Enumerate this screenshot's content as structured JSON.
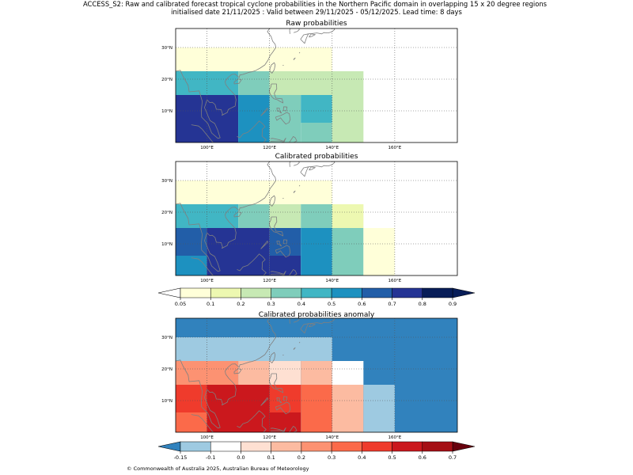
{
  "header": {
    "title_line1": "ACCESS_S2: Raw and calibrated forecast tropical cyclone probabilities in the Northern Pacific domain in overlapping 15 x 20 degree regions",
    "title_line2": "initialised date 21/11/2025 :  Valid between 29/11/2025 - 05/12/2025. Lead time: 8 days"
  },
  "footer": {
    "copyright": "© Commonwealth of Australia 2025, Australian Bureau of Meteorology"
  },
  "chart_data": [
    {
      "type": "heatmap",
      "title": "Raw probabilities",
      "x_range": [
        90,
        180
      ],
      "y_range": [
        0,
        36
      ],
      "x_ticks": [
        {
          "value": 100,
          "label": "100°E"
        },
        {
          "value": 120,
          "label": "120°E"
        },
        {
          "value": 140,
          "label": "140°E"
        },
        {
          "value": 160,
          "label": "160°E"
        }
      ],
      "y_ticks": [
        {
          "value": 10,
          "label": "10°N"
        },
        {
          "value": 20,
          "label": "20°N"
        },
        {
          "value": 30,
          "label": "30°N"
        }
      ],
      "cells": [
        {
          "lon": [
            90,
            140
          ],
          "lat": [
            22.5,
            30
          ],
          "value": 0.08
        },
        {
          "lon": [
            90,
            110
          ],
          "lat": [
            15,
            22.5
          ],
          "value": 0.45
        },
        {
          "lon": [
            110,
            120
          ],
          "lat": [
            15,
            22.5
          ],
          "value": 0.35
        },
        {
          "lon": [
            120,
            150
          ],
          "lat": [
            15,
            22.5
          ],
          "value": 0.25
        },
        {
          "lon": [
            90,
            110
          ],
          "lat": [
            0,
            15
          ],
          "value": 0.75
        },
        {
          "lon": [
            110,
            120
          ],
          "lat": [
            0,
            15
          ],
          "value": 0.55
        },
        {
          "lon": [
            120,
            130
          ],
          "lat": [
            0,
            15
          ],
          "value": 0.35
        },
        {
          "lon": [
            130,
            140
          ],
          "lat": [
            6.25,
            15
          ],
          "value": 0.45
        },
        {
          "lon": [
            130,
            140
          ],
          "lat": [
            0,
            6.25
          ],
          "value": 0.35
        },
        {
          "lon": [
            140,
            150
          ],
          "lat": [
            0,
            15
          ],
          "value": 0.25
        }
      ]
    },
    {
      "type": "heatmap",
      "title": "Calibrated probabilities",
      "x_range": [
        90,
        180
      ],
      "y_range": [
        0,
        36
      ],
      "x_ticks": [
        {
          "value": 100,
          "label": "100°E"
        },
        {
          "value": 120,
          "label": "120°E"
        },
        {
          "value": 140,
          "label": "140°E"
        },
        {
          "value": 160,
          "label": "160°E"
        }
      ],
      "y_ticks": [
        {
          "value": 10,
          "label": "10°N"
        },
        {
          "value": 20,
          "label": "20°N"
        },
        {
          "value": 30,
          "label": "30°N"
        }
      ],
      "cells": [
        {
          "lon": [
            90,
            140
          ],
          "lat": [
            22.5,
            30
          ],
          "value": 0.08
        },
        {
          "lon": [
            90,
            110
          ],
          "lat": [
            15,
            22.5
          ],
          "value": 0.45
        },
        {
          "lon": [
            110,
            120
          ],
          "lat": [
            15,
            22.5
          ],
          "value": 0.35
        },
        {
          "lon": [
            120,
            130
          ],
          "lat": [
            15,
            22.5
          ],
          "value": 0.25
        },
        {
          "lon": [
            130,
            140
          ],
          "lat": [
            15,
            22.5
          ],
          "value": 0.35
        },
        {
          "lon": [
            140,
            150
          ],
          "lat": [
            15,
            22.5
          ],
          "value": 0.15
        },
        {
          "lon": [
            90,
            100
          ],
          "lat": [
            6.25,
            15
          ],
          "value": 0.65
        },
        {
          "lon": [
            90,
            100
          ],
          "lat": [
            0,
            6.25
          ],
          "value": 0.55
        },
        {
          "lon": [
            100,
            120
          ],
          "lat": [
            0,
            15
          ],
          "value": 0.75
        },
        {
          "lon": [
            120,
            130
          ],
          "lat": [
            6.25,
            15
          ],
          "value": 0.65
        },
        {
          "lon": [
            120,
            130
          ],
          "lat": [
            0,
            6.25
          ],
          "value": 0.75
        },
        {
          "lon": [
            130,
            140
          ],
          "lat": [
            0,
            15
          ],
          "value": 0.55
        },
        {
          "lon": [
            140,
            150
          ],
          "lat": [
            0,
            15
          ],
          "value": 0.35
        },
        {
          "lon": [
            150,
            160
          ],
          "lat": [
            0,
            15
          ],
          "value": 0.08
        }
      ],
      "colorbar": {
        "ticks": [
          "0.05",
          "0.1",
          "0.2",
          "0.3",
          "0.4",
          "0.5",
          "0.6",
          "0.7",
          "0.8",
          "0.9"
        ],
        "colors": [
          "#ffffd9",
          "#edf8b1",
          "#c7e9b4",
          "#7fcdbb",
          "#41b6c4",
          "#1d91c0",
          "#225ea8",
          "#253494",
          "#081d58"
        ],
        "under_color": "#ffffff",
        "over_color": "#081d58",
        "levels": [
          0.05,
          0.1,
          0.2,
          0.3,
          0.4,
          0.5,
          0.6,
          0.7,
          0.8,
          0.9
        ]
      }
    },
    {
      "type": "heatmap",
      "title": "Calibrated probabilities anomaly",
      "x_range": [
        90,
        180
      ],
      "y_range": [
        0,
        36
      ],
      "x_ticks": [
        {
          "value": 100,
          "label": "100°E"
        },
        {
          "value": 120,
          "label": "120°E"
        },
        {
          "value": 140,
          "label": "140°E"
        },
        {
          "value": 160,
          "label": "160°E"
        }
      ],
      "y_ticks": [
        {
          "value": 10,
          "label": "10°N"
        },
        {
          "value": 20,
          "label": "20°N"
        },
        {
          "value": 30,
          "label": "30°N"
        }
      ],
      "cells": [
        {
          "lon": [
            90,
            180
          ],
          "lat": [
            0,
            36
          ],
          "value": -0.2
        },
        {
          "lon": [
            90,
            140
          ],
          "lat": [
            22.5,
            30
          ],
          "value": -0.12
        },
        {
          "lon": [
            90,
            110
          ],
          "lat": [
            15,
            22.5
          ],
          "value": 0.25
        },
        {
          "lon": [
            110,
            120
          ],
          "lat": [
            15,
            22.5
          ],
          "value": 0.15
        },
        {
          "lon": [
            120,
            130
          ],
          "lat": [
            15,
            22.5
          ],
          "value": 0.05
        },
        {
          "lon": [
            130,
            140
          ],
          "lat": [
            15,
            22.5
          ],
          "value": 0.15
        },
        {
          "lon": [
            140,
            150
          ],
          "lat": [
            15,
            22.5
          ],
          "value": -0.05
        },
        {
          "lon": [
            90,
            100
          ],
          "lat": [
            6.25,
            15
          ],
          "value": 0.45
        },
        {
          "lon": [
            90,
            100
          ],
          "lat": [
            0,
            6.25
          ],
          "value": 0.35
        },
        {
          "lon": [
            100,
            120
          ],
          "lat": [
            0,
            15
          ],
          "value": 0.55
        },
        {
          "lon": [
            120,
            130
          ],
          "lat": [
            6.25,
            15
          ],
          "value": 0.45
        },
        {
          "lon": [
            120,
            130
          ],
          "lat": [
            0,
            6.25
          ],
          "value": 0.55
        },
        {
          "lon": [
            130,
            140
          ],
          "lat": [
            0,
            15
          ],
          "value": 0.35
        },
        {
          "lon": [
            140,
            150
          ],
          "lat": [
            0,
            15
          ],
          "value": 0.15
        },
        {
          "lon": [
            150,
            160
          ],
          "lat": [
            0,
            15
          ],
          "value": -0.12
        }
      ],
      "colorbar": {
        "ticks": [
          "-0.15",
          "-0.1",
          "0.0",
          "0.1",
          "0.2",
          "0.3",
          "0.4",
          "0.5",
          "0.6",
          "0.7"
        ],
        "colors": [
          "#9ecae1",
          "#ffffff",
          "#fee0d2",
          "#fcbba1",
          "#fc9272",
          "#fb6a4a",
          "#ef3b2c",
          "#cb181d",
          "#a50f15"
        ],
        "under_color": "#3182bd",
        "over_color": "#67000d",
        "levels": [
          -0.15,
          -0.1,
          0.0,
          0.1,
          0.2,
          0.3,
          0.4,
          0.5,
          0.6,
          0.7
        ]
      }
    }
  ]
}
